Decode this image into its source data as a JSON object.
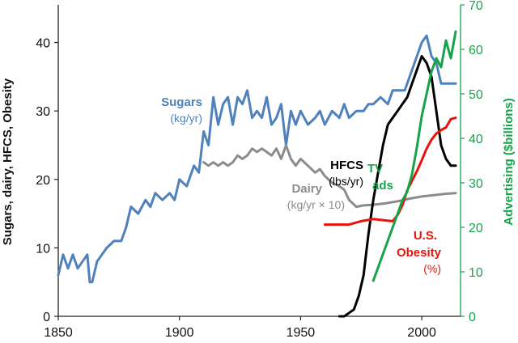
{
  "chart_data": {
    "type": "line",
    "title": "",
    "xlabel": "",
    "ylabel": "Sugars, dairy, HFCS, Obesity",
    "y2label": "Advertising ($billions)",
    "xlim": [
      1850,
      2016
    ],
    "ylim": [
      0,
      45.5
    ],
    "y2lim": [
      0,
      70
    ],
    "grid": false,
    "x_ticks": [
      "1850",
      "1900",
      "1950",
      "2000"
    ],
    "x_tick_values": [
      1850,
      1900,
      1950,
      2000
    ],
    "y_ticks": [
      "0",
      "10",
      "20",
      "30",
      "40"
    ],
    "y_tick_values": [
      0,
      10,
      20,
      30,
      40
    ],
    "y2_ticks": [
      "0",
      "10",
      "20",
      "30",
      "40",
      "50",
      "60",
      "70"
    ],
    "y2_tick_values": [
      0,
      10,
      20,
      30,
      40,
      50,
      60,
      70
    ],
    "colors": {
      "sugars": "#4f81bd",
      "dairy": "#8c8c8c",
      "hfcs": "#000000",
      "obesity": "#e8120c",
      "tv_ads": "#16a34a",
      "axis": "#222222",
      "right_axis": "#16a34a"
    },
    "series": [
      {
        "key": "sugars",
        "axis": "left",
        "x": [
          1850,
          1852,
          1854,
          1856,
          1858,
          1860,
          1862,
          1863,
          1864,
          1866,
          1868,
          1870,
          1873,
          1876,
          1878,
          1880,
          1883,
          1886,
          1888,
          1890,
          1893,
          1896,
          1898,
          1900,
          1903,
          1906,
          1908,
          1910,
          1912,
          1914,
          1916,
          1918,
          1920,
          1922,
          1924,
          1926,
          1928,
          1930,
          1932,
          1934,
          1936,
          1938,
          1940,
          1942,
          1944,
          1946,
          1948,
          1950,
          1953,
          1956,
          1958,
          1960,
          1963,
          1966,
          1968,
          1970,
          1973,
          1976,
          1978,
          1980,
          1983,
          1986,
          1988,
          1990,
          1993,
          1996,
          1998,
          2000,
          2002,
          2004,
          2006,
          2008,
          2010,
          2012,
          2014
        ],
        "y": [
          6,
          9,
          7,
          9,
          7,
          8,
          9,
          5,
          5,
          8,
          9,
          10,
          11,
          11,
          13,
          16,
          15,
          17,
          16,
          18,
          17,
          18,
          17,
          20,
          19,
          22,
          21,
          27,
          25,
          32,
          28,
          31,
          32,
          28,
          32,
          31,
          33,
          29,
          30,
          29,
          32,
          28,
          29,
          31,
          25,
          30,
          28,
          30,
          28,
          29,
          30,
          28,
          30,
          29,
          31,
          29,
          30,
          30,
          31,
          31,
          32,
          31,
          33,
          33,
          33,
          36,
          38,
          40,
          41,
          38,
          37,
          34,
          34,
          34,
          34
        ]
      },
      {
        "key": "dairy",
        "axis": "left",
        "x": [
          1910,
          1912,
          1914,
          1916,
          1918,
          1920,
          1922,
          1924,
          1926,
          1928,
          1930,
          1932,
          1934,
          1936,
          1938,
          1940,
          1942,
          1944,
          1946,
          1948,
          1950,
          1953,
          1956,
          1958,
          1960,
          1963,
          1966,
          1968,
          1970,
          1973,
          1976,
          1980,
          1985,
          1990,
          1995,
          2000,
          2005,
          2010,
          2014
        ],
        "y": [
          22.5,
          22,
          22.5,
          22,
          22.5,
          22,
          22.5,
          23.5,
          23,
          23.5,
          24.5,
          24,
          24.5,
          24,
          23.5,
          24.5,
          23,
          25,
          23,
          22,
          23,
          22,
          21,
          21.5,
          20.5,
          19.5,
          19,
          18.5,
          17,
          16,
          16.2,
          16.3,
          16.5,
          16.8,
          17.2,
          17.5,
          17.7,
          17.9,
          18
        ]
      },
      {
        "key": "hfcs",
        "axis": "left",
        "x": [
          1966,
          1968,
          1970,
          1972,
          1974,
          1976,
          1978,
          1980,
          1982,
          1984,
          1986,
          1988,
          1990,
          1992,
          1994,
          1996,
          1998,
          2000,
          2002,
          2004,
          2006,
          2008,
          2010,
          2012,
          2014
        ],
        "y": [
          0,
          0,
          0.5,
          1,
          3,
          6,
          12,
          17,
          21,
          25,
          28,
          29,
          30,
          31,
          32,
          34,
          36,
          38,
          37,
          35,
          30,
          25,
          23,
          22,
          22
        ]
      },
      {
        "key": "obesity",
        "axis": "left",
        "x": [
          1960,
          1965,
          1970,
          1975,
          1980,
          1985,
          1988,
          1990,
          1992,
          1994,
          1996,
          1998,
          2000,
          2002,
          2004,
          2006,
          2008,
          2010,
          2012,
          2014
        ],
        "y": [
          13.4,
          13.4,
          13.4,
          13.9,
          14.2,
          14.0,
          13.9,
          14.8,
          16.2,
          18.4,
          19.8,
          21.2,
          22.8,
          24.5,
          25.8,
          26.7,
          27.2,
          27.6,
          28.8,
          29.0
        ]
      },
      {
        "key": "tv_ads",
        "axis": "right",
        "x": [
          1980,
          1982,
          1984,
          1986,
          1988,
          1990,
          1992,
          1994,
          1996,
          1998,
          2000,
          2002,
          2004,
          2006,
          2008,
          2010,
          2012,
          2014
        ],
        "y": [
          8,
          11,
          14,
          17,
          20,
          23,
          26,
          28,
          32,
          38,
          45,
          50,
          55,
          58,
          56,
          62,
          58,
          64
        ]
      }
    ],
    "annotations": [
      {
        "key": "sugars",
        "label": "Sugars",
        "unit": "(kg/yr)"
      },
      {
        "key": "hfcs",
        "label": "HFCS",
        "unit": "(lbs/yr)"
      },
      {
        "key": "tv_ads",
        "label": "TV",
        "label2": "ads"
      },
      {
        "key": "dairy",
        "label": "Dairy",
        "unit": "(kg/yr × 10)"
      },
      {
        "key": "obesity",
        "label": "U.S.",
        "label2": "Obesity",
        "unit": "(%)"
      }
    ]
  }
}
